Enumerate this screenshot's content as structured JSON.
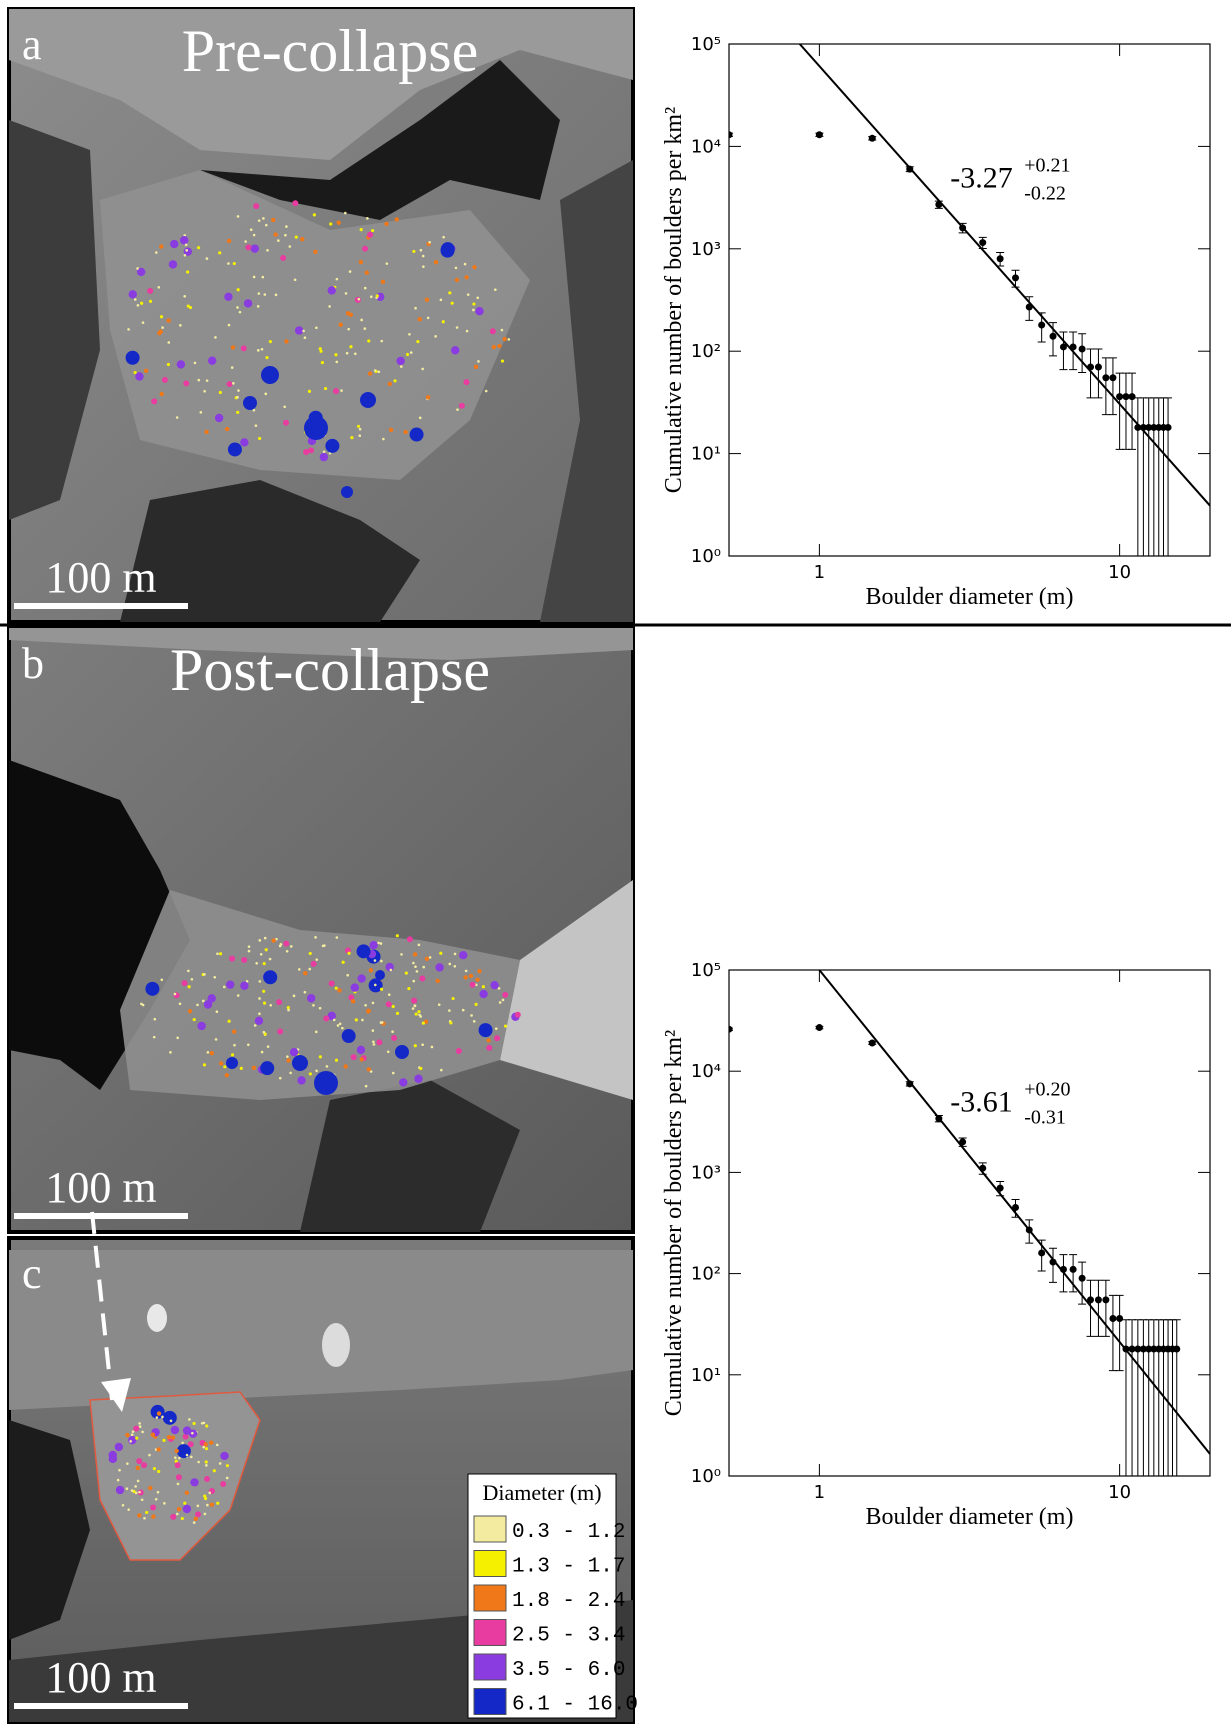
{
  "panels": [
    {
      "label": "a",
      "title": "Pre-collapse",
      "scale": "100 m"
    },
    {
      "label": "b",
      "title": "Post-collapse",
      "scale": "100 m"
    },
    {
      "label": "c",
      "scale": "100 m"
    }
  ],
  "legend": {
    "title": "Diameter (m)",
    "items": [
      {
        "label": "0.3 - 1.2",
        "color": "#f3eca0"
      },
      {
        "label": "1.3 - 1.7",
        "color": "#f4f000"
      },
      {
        "label": "1.8 - 2.4",
        "color": "#f07818"
      },
      {
        "label": "2.5 - 3.4",
        "color": "#e83ca0"
      },
      {
        "label": "3.5 - 6.0",
        "color": "#8a3ce0"
      },
      {
        "label": "6.1 - 16.0",
        "color": "#1428c8"
      }
    ]
  },
  "chart_data": [
    {
      "type": "scatter",
      "xlabel": "Boulder diameter (m)",
      "ylabel": "Cumulative number of boulders per km²",
      "slope": "-3.27",
      "slope_plus": "+0.21",
      "slope_minus": "-0.22",
      "log_x": true,
      "log_y": true,
      "color": "#000000",
      "xlim": [
        0.5,
        20
      ],
      "ylim": [
        1,
        100000
      ],
      "xticks": [
        1,
        10
      ],
      "yticks": [
        {
          "value": 1,
          "label": "10⁰"
        },
        {
          "value": 10,
          "label": "10¹"
        },
        {
          "value": 100,
          "label": "10²"
        },
        {
          "value": 1000,
          "label": "10³"
        },
        {
          "value": 10000,
          "label": "10⁴"
        },
        {
          "value": 100000,
          "label": "10⁵"
        }
      ],
      "x": [
        0.5,
        1,
        1.5,
        2,
        2.5,
        3,
        3.5,
        4,
        4.5,
        5,
        5.5,
        6,
        6.5,
        7,
        7.5,
        8,
        8.5,
        9,
        9.5,
        10,
        10.5,
        11,
        11.5,
        12,
        12.5,
        13,
        13.5,
        14,
        14.5
      ],
      "values": [
        13000,
        13000,
        12000,
        6000,
        2700,
        1600,
        1150,
        800,
        520,
        270,
        180,
        140,
        110,
        110,
        105,
        70,
        70,
        55,
        55,
        36,
        36,
        36,
        18,
        18,
        18,
        18,
        18,
        18,
        18
      ],
      "errors": [
        484,
        484,
        465,
        329,
        220,
        170,
        144,
        120,
        97,
        70,
        57,
        50,
        44,
        44,
        43,
        35,
        35,
        31,
        31,
        25,
        25,
        25,
        17,
        17,
        17,
        17,
        17,
        17,
        17
      ],
      "fit": {
        "x": [
          0.86,
          20
        ],
        "y": [
          100000,
          3.1
        ]
      }
    },
    {
      "type": "scatter",
      "xlabel": "Boulder diameter (m)",
      "ylabel": "Cumulative number of boulders per km²",
      "slope": "-3.61",
      "slope_plus": "+0.20",
      "slope_minus": "-0.31",
      "log_x": true,
      "log_y": true,
      "color": "#000000",
      "xlim": [
        0.5,
        20
      ],
      "ylim": [
        1,
        100000
      ],
      "xticks": [
        1,
        10
      ],
      "yticks": [
        {
          "value": 1,
          "label": "10⁰"
        },
        {
          "value": 10,
          "label": "10¹"
        },
        {
          "value": 100,
          "label": "10²"
        },
        {
          "value": 1000,
          "label": "10³"
        },
        {
          "value": 10000,
          "label": "10⁴"
        },
        {
          "value": 100000,
          "label": "10⁵"
        }
      ],
      "x": [
        0.5,
        1,
        1.5,
        2,
        2.5,
        3,
        3.5,
        4,
        4.5,
        5,
        5.5,
        6,
        6.5,
        7,
        7.5,
        8,
        8.5,
        9,
        9.5,
        10,
        10.5,
        11,
        11.5,
        12,
        12.5,
        13,
        13.5,
        14,
        14.5,
        15,
        15.5
      ],
      "values": [
        26000,
        27000,
        19000,
        7500,
        3400,
        2000,
        1100,
        700,
        450,
        270,
        160,
        130,
        110,
        110,
        90,
        55,
        55,
        55,
        36,
        36,
        18,
        18,
        18,
        18,
        18,
        18,
        18,
        18,
        18,
        18,
        18
      ],
      "errors": [
        684,
        697,
        585,
        367,
        247,
        190,
        141,
        112,
        90,
        70,
        54,
        48,
        44,
        44,
        40,
        31,
        31,
        31,
        25,
        25,
        17,
        17,
        17,
        17,
        17,
        17,
        17,
        17,
        17,
        17,
        17
      ],
      "fit": {
        "x": [
          1,
          20
        ],
        "y": [
          100000,
          1.65
        ]
      }
    }
  ]
}
